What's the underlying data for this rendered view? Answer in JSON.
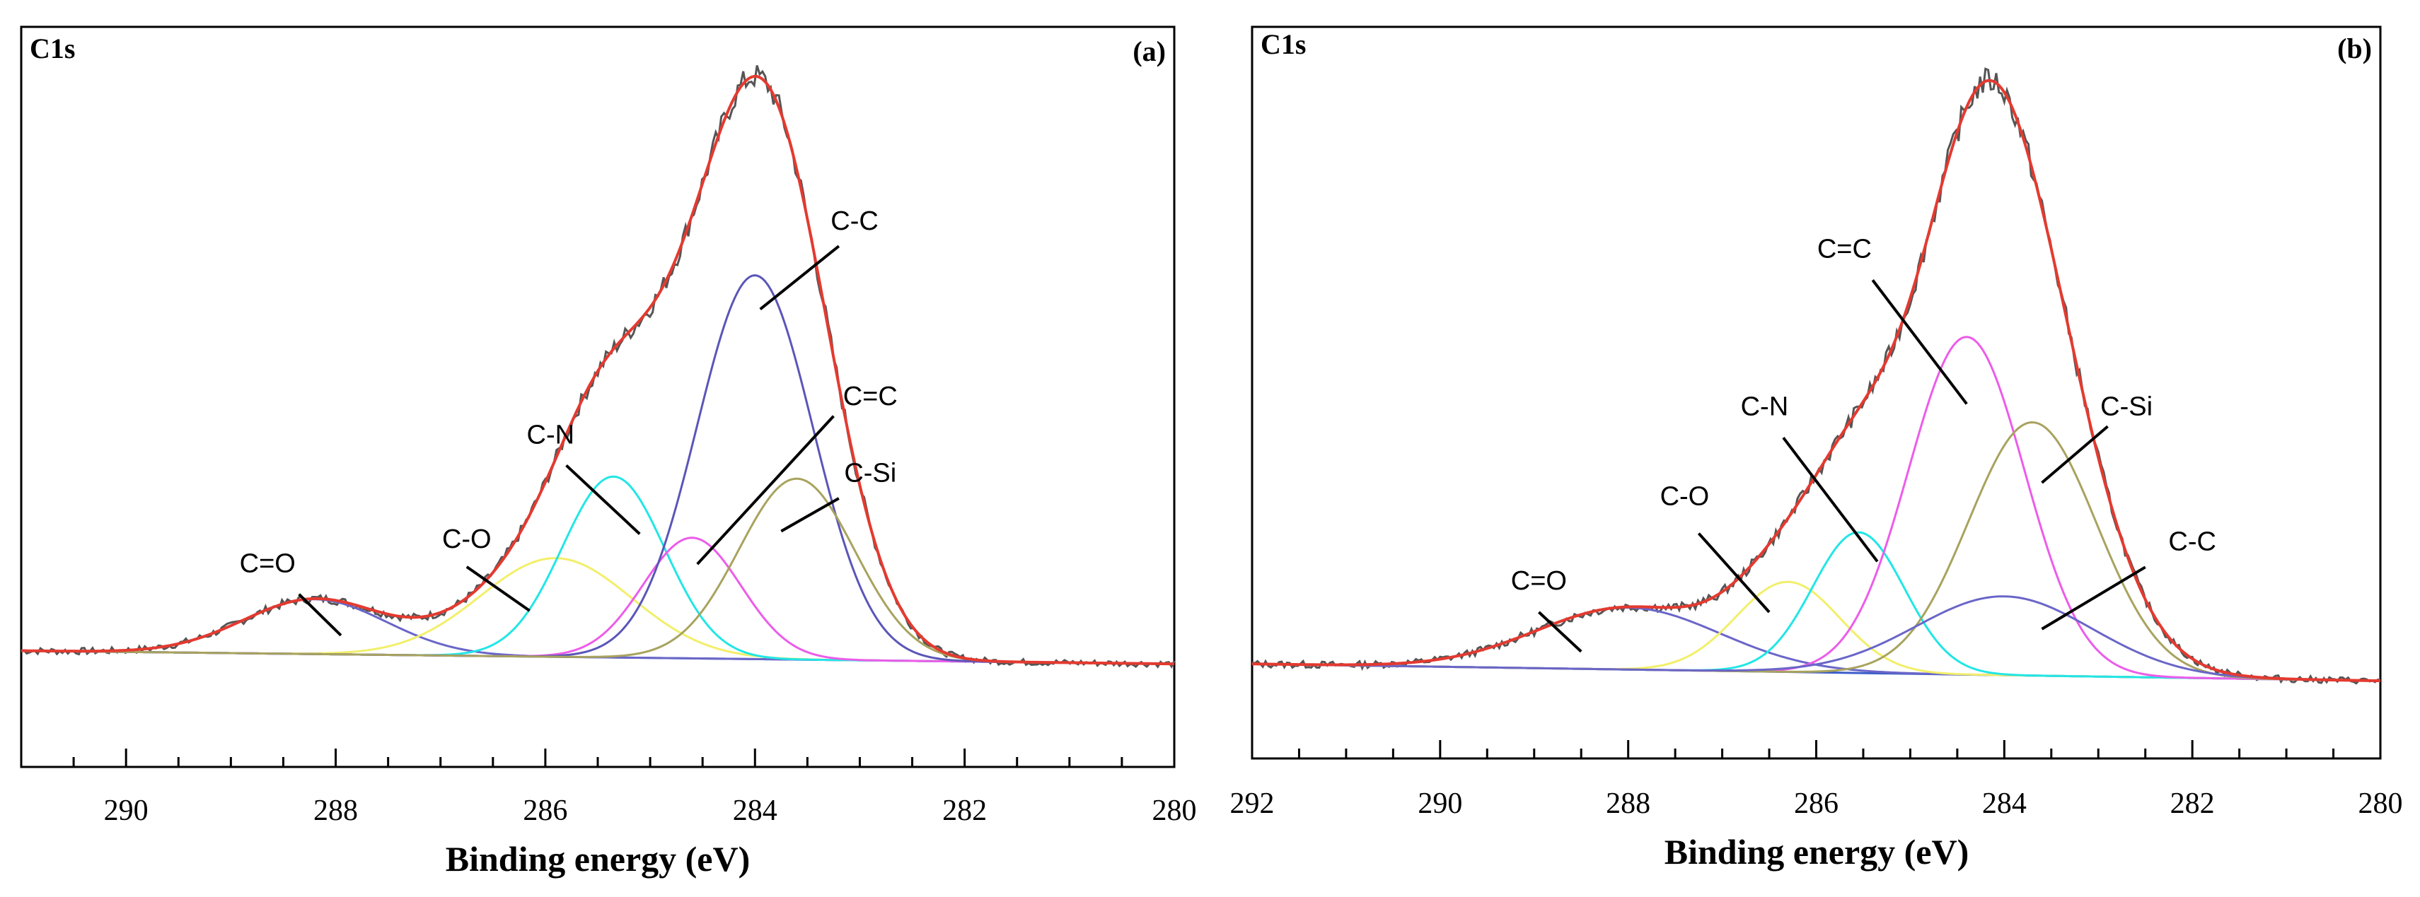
{
  "chart_data": [
    {
      "panel": "(a)",
      "type": "line",
      "corner_title": "C1s",
      "panel_label": "(a)",
      "xlabel": "Binding energy (eV)",
      "ylabel": "",
      "xlim": [
        291,
        280
      ],
      "ylim": [
        -0.2,
        1.15
      ],
      "x_ticks": [
        290,
        288,
        286,
        284,
        282,
        280
      ],
      "x_tick_labels": [
        "290",
        "288",
        "286",
        "284",
        "282",
        "280"
      ],
      "x_minor_step": 0.5,
      "baseline": {
        "start": 0.012,
        "end": -0.012
      },
      "components": [
        {
          "name": "C=O",
          "center": 288.2,
          "height": 0.1,
          "fwhm": 1.6,
          "color": "#6a66c8"
        },
        {
          "name": "C-O",
          "center": 285.9,
          "height": 0.18,
          "fwhm": 1.7,
          "color": "#f2ef6a"
        },
        {
          "name": "C-N",
          "center": 285.35,
          "height": 0.33,
          "fwhm": 1.15,
          "color": "#22e6e6"
        },
        {
          "name": "C=C",
          "center": 284.6,
          "height": 0.22,
          "fwhm": 1.1,
          "color": "#ec5cea"
        },
        {
          "name": "C-C",
          "center": 284.0,
          "height": 0.7,
          "fwhm": 1.3,
          "color": "#5a56b8"
        },
        {
          "name": "C-Si",
          "center": 283.6,
          "height": 0.33,
          "fwhm": 1.3,
          "color": "#a8a35e"
        }
      ],
      "envelope": {
        "name": "Fit",
        "color": "#e43a30"
      },
      "raw": {
        "name": "Raw",
        "color": "#555555"
      },
      "annotations": [
        {
          "text": "C=O",
          "label_x": 288.65,
          "label_y": 0.155,
          "line_from": [
            288.35,
            0.115
          ],
          "line_to": [
            287.95,
            0.04
          ]
        },
        {
          "text": "C-O",
          "label_x": 286.75,
          "label_y": 0.2,
          "line_from": [
            286.75,
            0.165
          ],
          "line_to": [
            286.15,
            0.085
          ]
        },
        {
          "text": "C-N",
          "label_x": 285.95,
          "label_y": 0.39,
          "line_from": [
            285.8,
            0.35
          ],
          "line_to": [
            285.1,
            0.225
          ]
        },
        {
          "text": "C=C",
          "label_x": 282.9,
          "label_y": 0.46,
          "line_from": [
            283.25,
            0.44
          ],
          "line_to": [
            284.55,
            0.17
          ]
        },
        {
          "text": "C-Si",
          "label_x": 282.9,
          "label_y": 0.32,
          "line_from": [
            283.2,
            0.29
          ],
          "line_to": [
            283.75,
            0.23
          ]
        },
        {
          "text": "C-C",
          "label_x": 283.05,
          "label_y": 0.78,
          "line_from": [
            283.2,
            0.75
          ],
          "line_to": [
            283.95,
            0.635
          ]
        }
      ]
    },
    {
      "panel": "(b)",
      "type": "line",
      "corner_title": "C1s",
      "panel_label": "(b)",
      "xlabel": "Binding energy (eV)",
      "ylabel": "",
      "xlim": [
        292,
        280
      ],
      "ylim": [
        -0.15,
        1.15
      ],
      "x_ticks": [
        292,
        290,
        288,
        286,
        284,
        282,
        280
      ],
      "x_tick_labels": [
        "292",
        "290",
        "288",
        "286",
        "284",
        "282",
        "280"
      ],
      "x_minor_step": 0.5,
      "baseline": {
        "start": 0.018,
        "end": -0.012
      },
      "components": [
        {
          "name": "C=O",
          "center": 288.0,
          "height": 0.11,
          "fwhm": 2.3,
          "color": "#6a66c8"
        },
        {
          "name": "C-O",
          "center": 286.3,
          "height": 0.16,
          "fwhm": 1.3,
          "color": "#f2ef6a"
        },
        {
          "name": "C-N",
          "center": 285.55,
          "height": 0.25,
          "fwhm": 1.15,
          "color": "#22e6e6"
        },
        {
          "name": "C=C",
          "center": 284.4,
          "height": 0.6,
          "fwhm": 1.45,
          "color": "#ec5cea"
        },
        {
          "name": "C-Si",
          "center": 283.7,
          "height": 0.45,
          "fwhm": 1.6,
          "color": "#a8a35e"
        },
        {
          "name": "C-C",
          "center": 284.0,
          "height": 0.14,
          "fwhm": 2.2,
          "color": "#6a66c8"
        }
      ],
      "envelope": {
        "name": "Fit",
        "color": "#e43a30"
      },
      "raw": {
        "name": "Raw",
        "color": "#555555"
      },
      "annotations": [
        {
          "text": "C=O",
          "label_x": 288.95,
          "label_y": 0.15,
          "line_from": [
            288.95,
            0.11
          ],
          "line_to": [
            288.5,
            0.04
          ]
        },
        {
          "text": "C-O",
          "label_x": 287.4,
          "label_y": 0.3,
          "line_from": [
            287.25,
            0.25
          ],
          "line_to": [
            286.5,
            0.11
          ]
        },
        {
          "text": "C-N",
          "label_x": 286.55,
          "label_y": 0.46,
          "line_from": [
            286.35,
            0.42
          ],
          "line_to": [
            285.35,
            0.2
          ]
        },
        {
          "text": "C=C",
          "label_x": 285.7,
          "label_y": 0.74,
          "line_from": [
            285.4,
            0.7
          ],
          "line_to": [
            284.4,
            0.48
          ]
        },
        {
          "text": "C-Si",
          "label_x": 282.7,
          "label_y": 0.46,
          "line_from": [
            282.9,
            0.44
          ],
          "line_to": [
            283.6,
            0.34
          ]
        },
        {
          "text": "C-C",
          "label_x": 282.0,
          "label_y": 0.22,
          "line_from": [
            282.5,
            0.19
          ],
          "line_to": [
            283.6,
            0.08
          ]
        }
      ]
    }
  ]
}
